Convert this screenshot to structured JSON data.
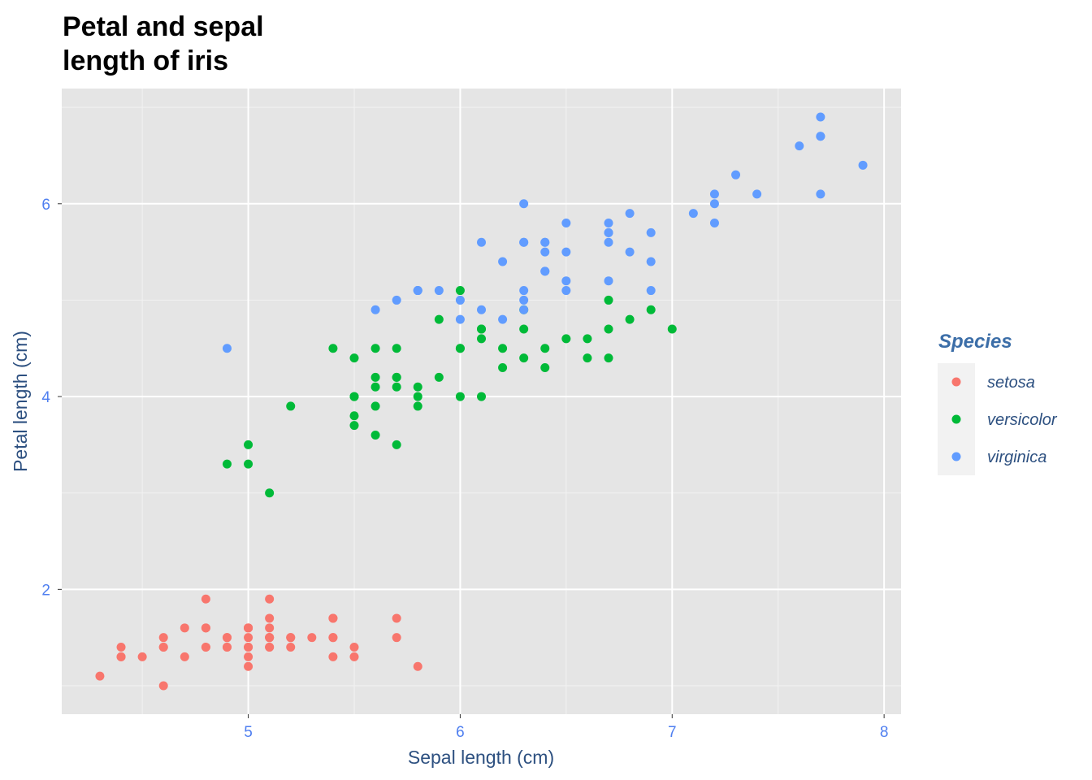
{
  "chart_data": {
    "type": "scatter",
    "title": "Petal and sepal\nlength of iris",
    "title_lines": [
      "Petal and sepal",
      "length of iris"
    ],
    "xlabel": "Sepal length (cm)",
    "ylabel": "Petal length (cm)",
    "xlim": [
      4.12,
      8.08
    ],
    "ylim": [
      0.705,
      7.195
    ],
    "x_ticks": [
      "5",
      "6",
      "7",
      "8"
    ],
    "y_ticks": [
      "2",
      "4",
      "6"
    ],
    "grid": true,
    "legend": {
      "title": "Species",
      "position": "right",
      "entries": [
        "setosa",
        "versicolor",
        "virginica"
      ]
    },
    "colors": {
      "setosa": "#F8766D",
      "versicolor": "#00BA38",
      "virginica": "#619CFF"
    },
    "series": [
      {
        "name": "setosa",
        "points": [
          [
            5.1,
            1.4
          ],
          [
            4.9,
            1.4
          ],
          [
            4.7,
            1.3
          ],
          [
            4.6,
            1.5
          ],
          [
            5.0,
            1.4
          ],
          [
            5.4,
            1.7
          ],
          [
            4.6,
            1.4
          ],
          [
            5.0,
            1.5
          ],
          [
            4.4,
            1.4
          ],
          [
            4.9,
            1.5
          ],
          [
            5.4,
            1.5
          ],
          [
            4.8,
            1.6
          ],
          [
            4.8,
            1.4
          ],
          [
            4.3,
            1.1
          ],
          [
            5.8,
            1.2
          ],
          [
            5.7,
            1.5
          ],
          [
            5.4,
            1.3
          ],
          [
            5.1,
            1.4
          ],
          [
            5.7,
            1.7
          ],
          [
            5.1,
            1.5
          ],
          [
            5.4,
            1.7
          ],
          [
            5.1,
            1.5
          ],
          [
            4.6,
            1.0
          ],
          [
            5.1,
            1.7
          ],
          [
            4.8,
            1.9
          ],
          [
            5.0,
            1.6
          ],
          [
            5.0,
            1.6
          ],
          [
            5.2,
            1.5
          ],
          [
            5.2,
            1.4
          ],
          [
            4.7,
            1.6
          ],
          [
            4.8,
            1.6
          ],
          [
            5.4,
            1.5
          ],
          [
            5.2,
            1.5
          ],
          [
            5.5,
            1.4
          ],
          [
            4.9,
            1.5
          ],
          [
            5.0,
            1.2
          ],
          [
            5.5,
            1.3
          ],
          [
            4.9,
            1.4
          ],
          [
            4.4,
            1.3
          ],
          [
            5.1,
            1.5
          ],
          [
            5.0,
            1.3
          ],
          [
            4.5,
            1.3
          ],
          [
            4.4,
            1.3
          ],
          [
            5.0,
            1.6
          ],
          [
            5.1,
            1.9
          ],
          [
            4.8,
            1.4
          ],
          [
            5.1,
            1.6
          ],
          [
            4.6,
            1.4
          ],
          [
            5.3,
            1.5
          ],
          [
            5.0,
            1.4
          ]
        ]
      },
      {
        "name": "versicolor",
        "points": [
          [
            7.0,
            4.7
          ],
          [
            6.4,
            4.5
          ],
          [
            6.9,
            4.9
          ],
          [
            5.5,
            4.0
          ],
          [
            6.5,
            4.6
          ],
          [
            5.7,
            4.5
          ],
          [
            6.3,
            4.7
          ],
          [
            4.9,
            3.3
          ],
          [
            6.6,
            4.6
          ],
          [
            5.2,
            3.9
          ],
          [
            5.0,
            3.5
          ],
          [
            5.9,
            4.2
          ],
          [
            6.0,
            4.0
          ],
          [
            6.1,
            4.7
          ],
          [
            5.6,
            3.6
          ],
          [
            6.7,
            4.4
          ],
          [
            5.6,
            4.5
          ],
          [
            5.8,
            4.1
          ],
          [
            6.2,
            4.5
          ],
          [
            5.6,
            3.9
          ],
          [
            5.9,
            4.8
          ],
          [
            6.1,
            4.0
          ],
          [
            6.3,
            4.9
          ],
          [
            6.1,
            4.7
          ],
          [
            6.4,
            4.3
          ],
          [
            6.6,
            4.4
          ],
          [
            6.8,
            4.8
          ],
          [
            6.7,
            5.0
          ],
          [
            6.0,
            4.5
          ],
          [
            5.7,
            3.5
          ],
          [
            5.5,
            3.8
          ],
          [
            5.5,
            3.7
          ],
          [
            5.8,
            3.9
          ],
          [
            6.0,
            5.1
          ],
          [
            5.4,
            4.5
          ],
          [
            6.0,
            4.5
          ],
          [
            6.7,
            4.7
          ],
          [
            6.3,
            4.4
          ],
          [
            5.6,
            4.1
          ],
          [
            5.5,
            4.0
          ],
          [
            5.5,
            4.4
          ],
          [
            6.1,
            4.6
          ],
          [
            5.8,
            4.0
          ],
          [
            5.0,
            3.3
          ],
          [
            5.6,
            4.2
          ],
          [
            5.7,
            4.2
          ],
          [
            5.7,
            4.2
          ],
          [
            6.2,
            4.3
          ],
          [
            5.1,
            3.0
          ],
          [
            5.7,
            4.1
          ]
        ]
      },
      {
        "name": "virginica",
        "points": [
          [
            6.3,
            6.0
          ],
          [
            5.8,
            5.1
          ],
          [
            7.1,
            5.9
          ],
          [
            6.3,
            5.6
          ],
          [
            6.5,
            5.8
          ],
          [
            7.6,
            6.6
          ],
          [
            4.9,
            4.5
          ],
          [
            7.3,
            6.3
          ],
          [
            6.7,
            5.8
          ],
          [
            7.2,
            6.1
          ],
          [
            6.5,
            5.1
          ],
          [
            6.4,
            5.3
          ],
          [
            6.8,
            5.5
          ],
          [
            5.7,
            5.0
          ],
          [
            5.8,
            5.1
          ],
          [
            6.4,
            5.3
          ],
          [
            6.5,
            5.5
          ],
          [
            7.7,
            6.7
          ],
          [
            7.7,
            6.9
          ],
          [
            6.0,
            5.0
          ],
          [
            6.9,
            5.7
          ],
          [
            5.6,
            4.9
          ],
          [
            7.7,
            6.7
          ],
          [
            6.3,
            4.9
          ],
          [
            6.7,
            5.7
          ],
          [
            7.2,
            6.0
          ],
          [
            6.2,
            4.8
          ],
          [
            6.1,
            4.9
          ],
          [
            6.4,
            5.6
          ],
          [
            7.2,
            5.8
          ],
          [
            7.4,
            6.1
          ],
          [
            7.9,
            6.4
          ],
          [
            6.4,
            5.6
          ],
          [
            6.3,
            5.1
          ],
          [
            6.1,
            5.6
          ],
          [
            7.7,
            6.1
          ],
          [
            6.3,
            5.6
          ],
          [
            6.4,
            5.5
          ],
          [
            6.0,
            4.8
          ],
          [
            6.9,
            5.4
          ],
          [
            6.7,
            5.6
          ],
          [
            6.9,
            5.1
          ],
          [
            5.8,
            5.1
          ],
          [
            6.8,
            5.9
          ],
          [
            6.7,
            5.7
          ],
          [
            6.7,
            5.2
          ],
          [
            6.3,
            5.0
          ],
          [
            6.5,
            5.2
          ],
          [
            6.2,
            5.4
          ],
          [
            5.9,
            5.1
          ]
        ]
      }
    ]
  }
}
